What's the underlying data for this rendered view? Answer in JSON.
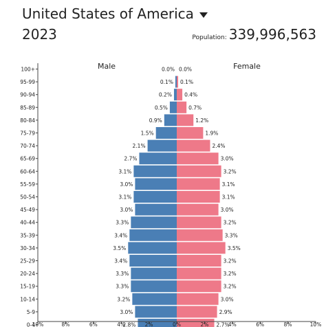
{
  "header": {
    "country": "United States of America",
    "year": "2023",
    "population_label": "Population:",
    "population_value": "339,996,563"
  },
  "colors": {
    "male": "#4a7fb5",
    "female": "#ee7989",
    "axis": "#444444"
  },
  "chart_data": {
    "type": "bar",
    "orientation": "horizontal-pyramid",
    "categories": [
      "100+",
      "95-99",
      "90-94",
      "85-89",
      "80-84",
      "75-79",
      "70-74",
      "65-69",
      "60-64",
      "55-59",
      "50-54",
      "45-49",
      "40-44",
      "35-39",
      "30-34",
      "25-29",
      "20-24",
      "15-19",
      "10-14",
      "5-9",
      "0-4"
    ],
    "series": [
      {
        "name": "Male",
        "values": [
          0.0,
          0.1,
          0.2,
          0.5,
          0.9,
          1.5,
          2.1,
          2.7,
          3.1,
          3.0,
          3.1,
          3.0,
          3.3,
          3.4,
          3.5,
          3.4,
          3.3,
          3.3,
          3.2,
          3.0,
          2.8
        ]
      },
      {
        "name": "Female",
        "values": [
          0.0,
          0.1,
          0.4,
          0.7,
          1.2,
          1.9,
          2.4,
          3.0,
          3.2,
          3.1,
          3.1,
          3.0,
          3.2,
          3.3,
          3.5,
          3.2,
          3.2,
          3.2,
          3.0,
          2.9,
          2.7
        ]
      }
    ],
    "xlim": [
      -10,
      10
    ],
    "xticks": [
      "10%",
      "8%",
      "6%",
      "4%",
      "2%",
      "0%",
      "2%",
      "4%",
      "6%",
      "8%",
      "10%"
    ],
    "legend": "top"
  }
}
